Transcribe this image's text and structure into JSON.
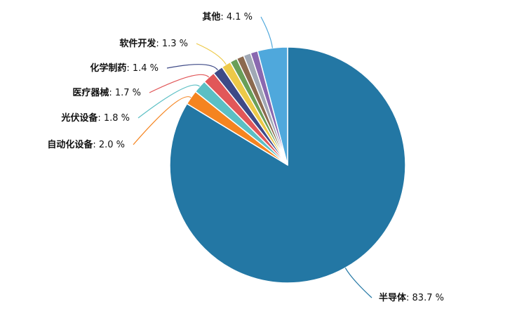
{
  "chart_data": {
    "type": "pie",
    "categories": [
      "半导体",
      "自动化设备",
      "光伏设备",
      "医疗器械",
      "化学制药",
      "软件开发",
      null,
      null,
      null,
      null,
      "其他"
    ],
    "values": [
      83.7,
      2.0,
      1.8,
      1.7,
      1.4,
      1.3,
      1.0,
      1.0,
      1.0,
      1.0,
      4.1
    ],
    "value_labels": [
      ": 83.7 %",
      ": 2.0 %",
      ": 1.8 %",
      ": 1.7 %",
      ": 1.4 %",
      ": 1.3 %",
      null,
      null,
      null,
      null,
      ": 4.1 %"
    ],
    "colors": [
      "#2377a4",
      "#f5841f",
      "#5bbfc4",
      "#e15759",
      "#3e4a87",
      "#edc948",
      "#6a9f58",
      "#8c6a4f",
      "#a0a8b5",
      "#8a68b0",
      "#4fa8dc"
    ]
  }
}
